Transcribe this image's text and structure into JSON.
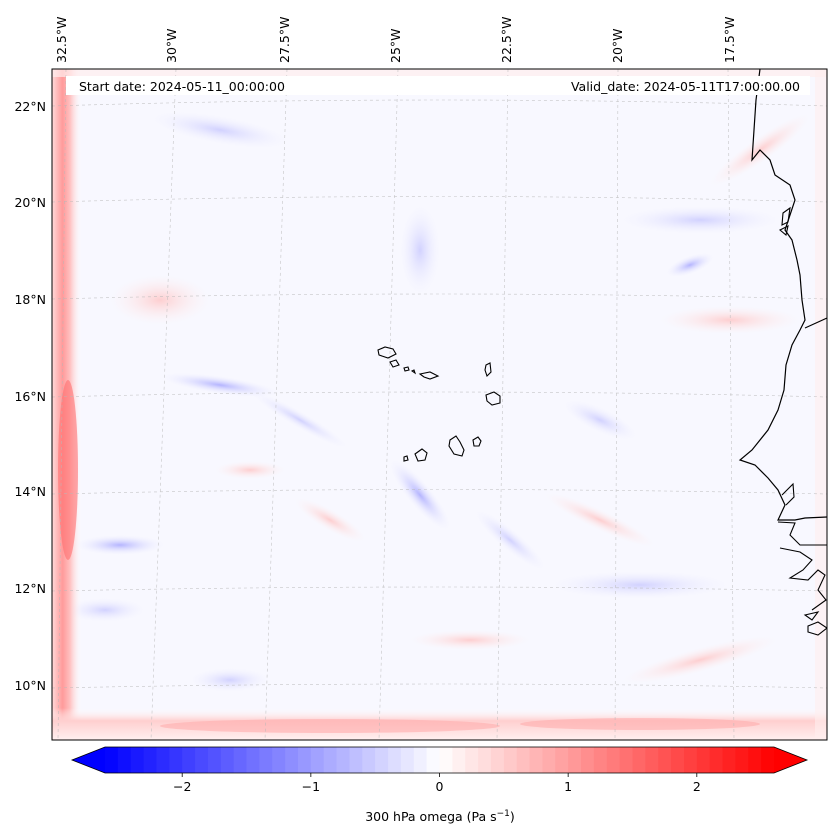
{
  "map": {
    "start_date": "Start date: 2024-05-11_00:00:00",
    "valid_date": "Valid_date: 2024-05-11T17:00:00.00",
    "lon_labels": [
      "32.5°W",
      "30°W",
      "27.5°W",
      "25°W",
      "22.5°W",
      "20°W",
      "17.5°W"
    ],
    "lat_labels": [
      "22°N",
      "20°N",
      "18°N",
      "16°N",
      "14°N",
      "12°N",
      "10°N"
    ],
    "gridlines": "dashed"
  },
  "colorbar": {
    "tick_labels": [
      "−2",
      "−1",
      "0",
      "1",
      "2"
    ],
    "ticks": [
      -2,
      -1,
      0,
      1,
      2
    ],
    "range": [
      -2.6,
      2.6
    ],
    "label_main": "300 hPa omega (Pa s",
    "label_sup": "−1",
    "label_end": ")",
    "colormap": "bwr",
    "extend": "both"
  },
  "colors": {
    "negative": "#0000ff",
    "neutral": "#ffffff",
    "positive": "#ff0000",
    "coast": "#000000"
  }
}
